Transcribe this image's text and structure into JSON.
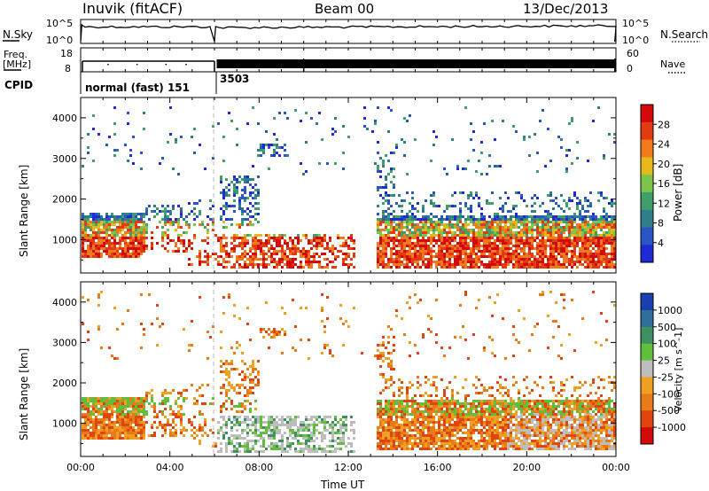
{
  "header": {
    "station": "Inuvik (fitACF)",
    "beam": "Beam 00",
    "date": "13/Dec/2013"
  },
  "side_labels": {
    "nsky": "N.Sky",
    "nsearch": "N.Search",
    "freq": "Freq.",
    "mhz": "[MHz]",
    "nave": "Nave",
    "cpid": "CPID"
  },
  "small_axes": {
    "noise_ticks_left": [
      "10^5",
      "10^0"
    ],
    "noise_ticks_right": [
      "10^5",
      "10^0"
    ],
    "freq_ticks": [
      "18",
      "8"
    ],
    "nave_ticks": [
      "60",
      "0"
    ]
  },
  "cpid": {
    "segments": [
      {
        "label": "normal (fast) 151",
        "start_hour": 0,
        "end_hour": 6
      },
      {
        "label": "3503",
        "start_hour": 6,
        "end_hour": 24
      }
    ]
  },
  "chart_data": [
    {
      "type": "heatmap",
      "name": "power",
      "ylabel": "Slant Range [km]",
      "xlim": [
        0,
        24
      ],
      "ylim": [
        180,
        4500
      ],
      "yticks": [
        1000,
        2000,
        3000,
        4000
      ],
      "colorbar": {
        "label": "Power [dB]",
        "range": [
          0,
          32
        ],
        "ticks": [
          "4",
          "8",
          "12",
          "16",
          "20",
          "24",
          "28"
        ],
        "colors": [
          "#1f2ad6",
          "#2a56c4",
          "#2f7f8a",
          "#3f9e6a",
          "#7cc44a",
          "#e5b91a",
          "#f07a1c",
          "#e23a12",
          "#d40a0a"
        ]
      }
    },
    {
      "type": "heatmap",
      "name": "velocity",
      "ylabel": "Slant Range [km]",
      "xlabel": "Time UT",
      "xlim": [
        0,
        24
      ],
      "ylim": [
        180,
        4500
      ],
      "yticks": [
        1000,
        2000,
        3000,
        4000
      ],
      "xticks": [
        "00:00",
        "04:00",
        "08:00",
        "12:00",
        "16:00",
        "20:00",
        "00:00"
      ],
      "colorbar": {
        "label": "Velocity [m s^-1]",
        "ticks": [
          "1000",
          "500",
          "100",
          "25",
          "-25",
          "-100",
          "-500",
          "-1000"
        ],
        "colors": [
          "#1a3fb0",
          "#2f6f9a",
          "#3f9060",
          "#5fbf3a",
          "#bdbdbd",
          "#f0a020",
          "#e87a18",
          "#e04510",
          "#d40a0a"
        ]
      }
    }
  ]
}
